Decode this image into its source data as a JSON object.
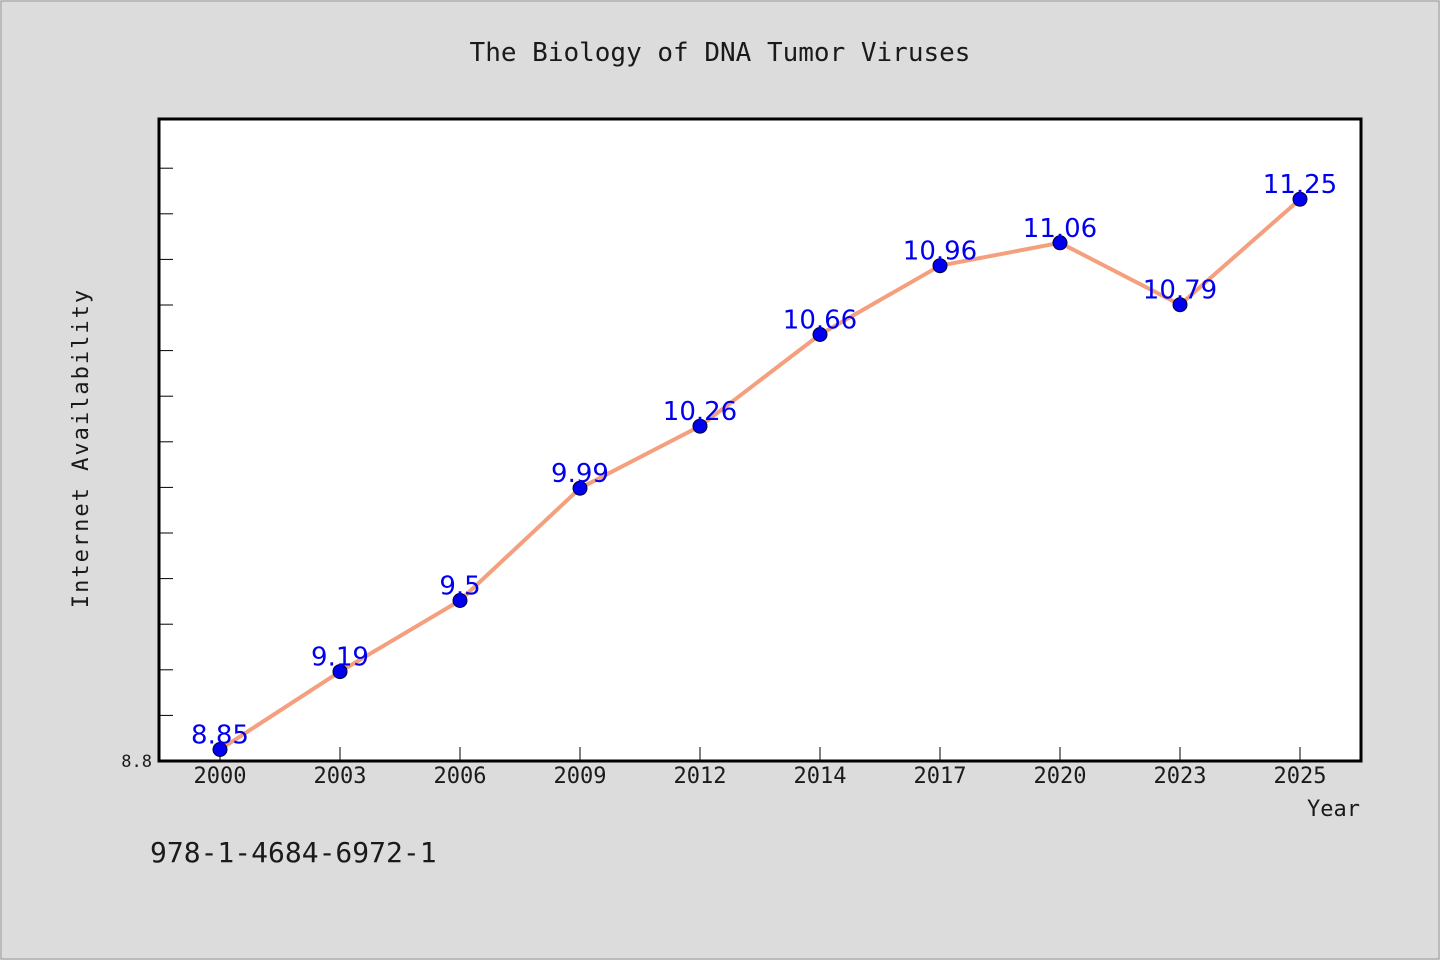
{
  "chart_data": {
    "type": "line",
    "title": "The Biology of DNA Tumor Viruses",
    "xlabel": "Year",
    "ylabel": "Internet Availability",
    "categories": [
      "2000",
      "2003",
      "2006",
      "2009",
      "2012",
      "2014",
      "2017",
      "2020",
      "2023",
      "2025"
    ],
    "series": [
      {
        "values": [
          8.85,
          9.19,
          9.5,
          9.99,
          10.26,
          10.66,
          10.96,
          11.06,
          10.79,
          11.25
        ],
        "data_labels": [
          "8.85",
          "9.19",
          "9.5",
          "9.99",
          "10.26",
          "10.66",
          "10.96",
          "11.06",
          "10.79",
          "11.25"
        ]
      }
    ],
    "ylim": [
      8.8,
      11.6
    ],
    "y_tick_labels": [
      "8.8"
    ],
    "grid": false,
    "legend": "none",
    "annotation": "978-1-4684-6972-1",
    "colors": {
      "background": "#dcdcdc",
      "plot_background": "#ffffff",
      "line": "#f4a07e",
      "marker": "#0000ee",
      "data_label": "#0000ee",
      "text": "#1a1a1a"
    }
  }
}
